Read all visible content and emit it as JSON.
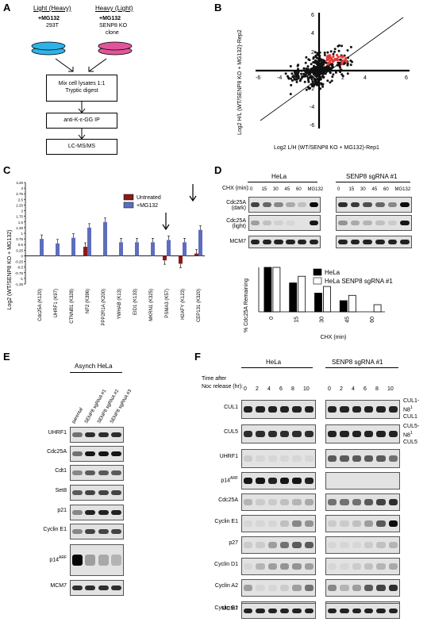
{
  "panels": {
    "a": "A",
    "b": "B",
    "c": "C",
    "d": "D",
    "e": "E",
    "f": "F"
  },
  "panelA": {
    "light_title": "Light (Heavy)",
    "heavy_title": "Heavy (Light)",
    "light_treat": "+MG132",
    "light_cell": "293T",
    "heavy_treat": "+MG132",
    "heavy_cell1": "SENP8 KO",
    "heavy_cell2": "clone",
    "step1a": "Mix cell lysates 1:1",
    "step1b": "Tryptic digest",
    "step2": "anti-K-ε-GG IP",
    "step3": "LC-MS/MS",
    "colors": {
      "light_dish": "#2db3e8",
      "heavy_dish": "#e05599"
    }
  },
  "panelB": {
    "ylabel": "Log2 H/L (WT/SENP8 KO + MG132)-Rep2",
    "xlabel": "Log2 L/H (WT/SENP8 KO + MG132)-Rep1",
    "ticks": [
      "-6",
      "-4",
      "-2",
      "2",
      "4",
      "6",
      "-2",
      "-4",
      "-6",
      "2",
      "4",
      "6"
    ]
  },
  "chart_data": [
    {
      "type": "bar",
      "panel": "C",
      "ylabel": "Log2 (WT/SENP8 KO + MG132)",
      "ylim": [
        -1.25,
        3.25
      ],
      "yticks": [
        "3.25",
        "3",
        "2.75",
        "2.5",
        "2.25",
        "2",
        "1.75",
        "1.5",
        "1.25",
        "1",
        "0.75",
        "0.5",
        "0.25",
        "0",
        "-0.25",
        "-0.5",
        "-0.75",
        "-1",
        "-1.25"
      ],
      "categories": [
        "Cdc25A (K120)",
        "UHRF1 (K97)",
        "CTNNB1 (K328)",
        "NF2 (K396)",
        "PPP2R1A (K200)",
        "YWHAB (K13)",
        "EID1 (K133)",
        "MKRN1 (K325)",
        "PSMA3 (K57)",
        "H2AFY (K123)",
        "CEP131 (K320)"
      ],
      "series": [
        {
          "name": "Untreated",
          "color": "#8b1a1a",
          "values": [
            null,
            null,
            null,
            0.4,
            null,
            null,
            null,
            null,
            -0.2,
            -0.35,
            0.1
          ]
        },
        {
          "name": "+MG132",
          "color": "#5e6ebd",
          "values": [
            0.75,
            0.55,
            0.8,
            1.25,
            1.5,
            0.6,
            0.6,
            0.6,
            0.7,
            0.6,
            1.15
          ]
        }
      ]
    },
    {
      "type": "bar",
      "panel": "D",
      "ylabel": "% Cdc25A Remaining",
      "xlabel": "CHX (min)",
      "categories": [
        "0",
        "15",
        "30",
        "45",
        "60"
      ],
      "series": [
        {
          "name": "HeLa",
          "color": "#000000",
          "values": [
            100,
            65,
            42,
            25,
            0
          ]
        },
        {
          "name": "HeLa SENP8 sgRNA #1",
          "color": "#ffffff",
          "values": [
            100,
            80,
            57,
            37,
            16
          ]
        }
      ]
    }
  ],
  "panelD": {
    "group1": "HeLa",
    "group2": "SENP8 sgRNA #1",
    "chx_label": "CHX (min):",
    "lanes": [
      "0",
      "15",
      "30",
      "45",
      "60",
      "MG132"
    ],
    "rows": [
      "Cdc25A (dark)",
      "Cdc25A (light)",
      "MCM7"
    ]
  },
  "panelE": {
    "title": "Asynch HeLa",
    "lanes": [
      "parental",
      "SENP8 sgRNA #1",
      "SENP8 sgRNA #2",
      "SENP8 sgRNA #3"
    ],
    "rows": [
      "UHRF1",
      "Cdc25A",
      "Cdt1",
      "Set8",
      "p21",
      "Cyclin E1",
      "p14ARF",
      "MCM7"
    ],
    "arf_sup": "ARF"
  },
  "panelF": {
    "group1": "HeLa",
    "group2": "SENP8 sgRNA #1",
    "time_label1": "Time after",
    "time_label2": "Noc release (hr):",
    "lanes": [
      "0",
      "2",
      "4",
      "6",
      "8",
      "10"
    ],
    "rows": [
      "CUL1",
      "CUL5",
      "UHRF1",
      "p14ARF",
      "Cdc25A",
      "Cyclin E1",
      "p27",
      "Cyclin D1",
      "Cyclin A2",
      "Cyclin B1",
      "MCM7"
    ],
    "cul1_n8": "CUL1-N8",
    "cul1": "CUL1",
    "cul5_n8": "CUL5-N8",
    "cul5": "CUL5",
    "sup1": "1"
  }
}
